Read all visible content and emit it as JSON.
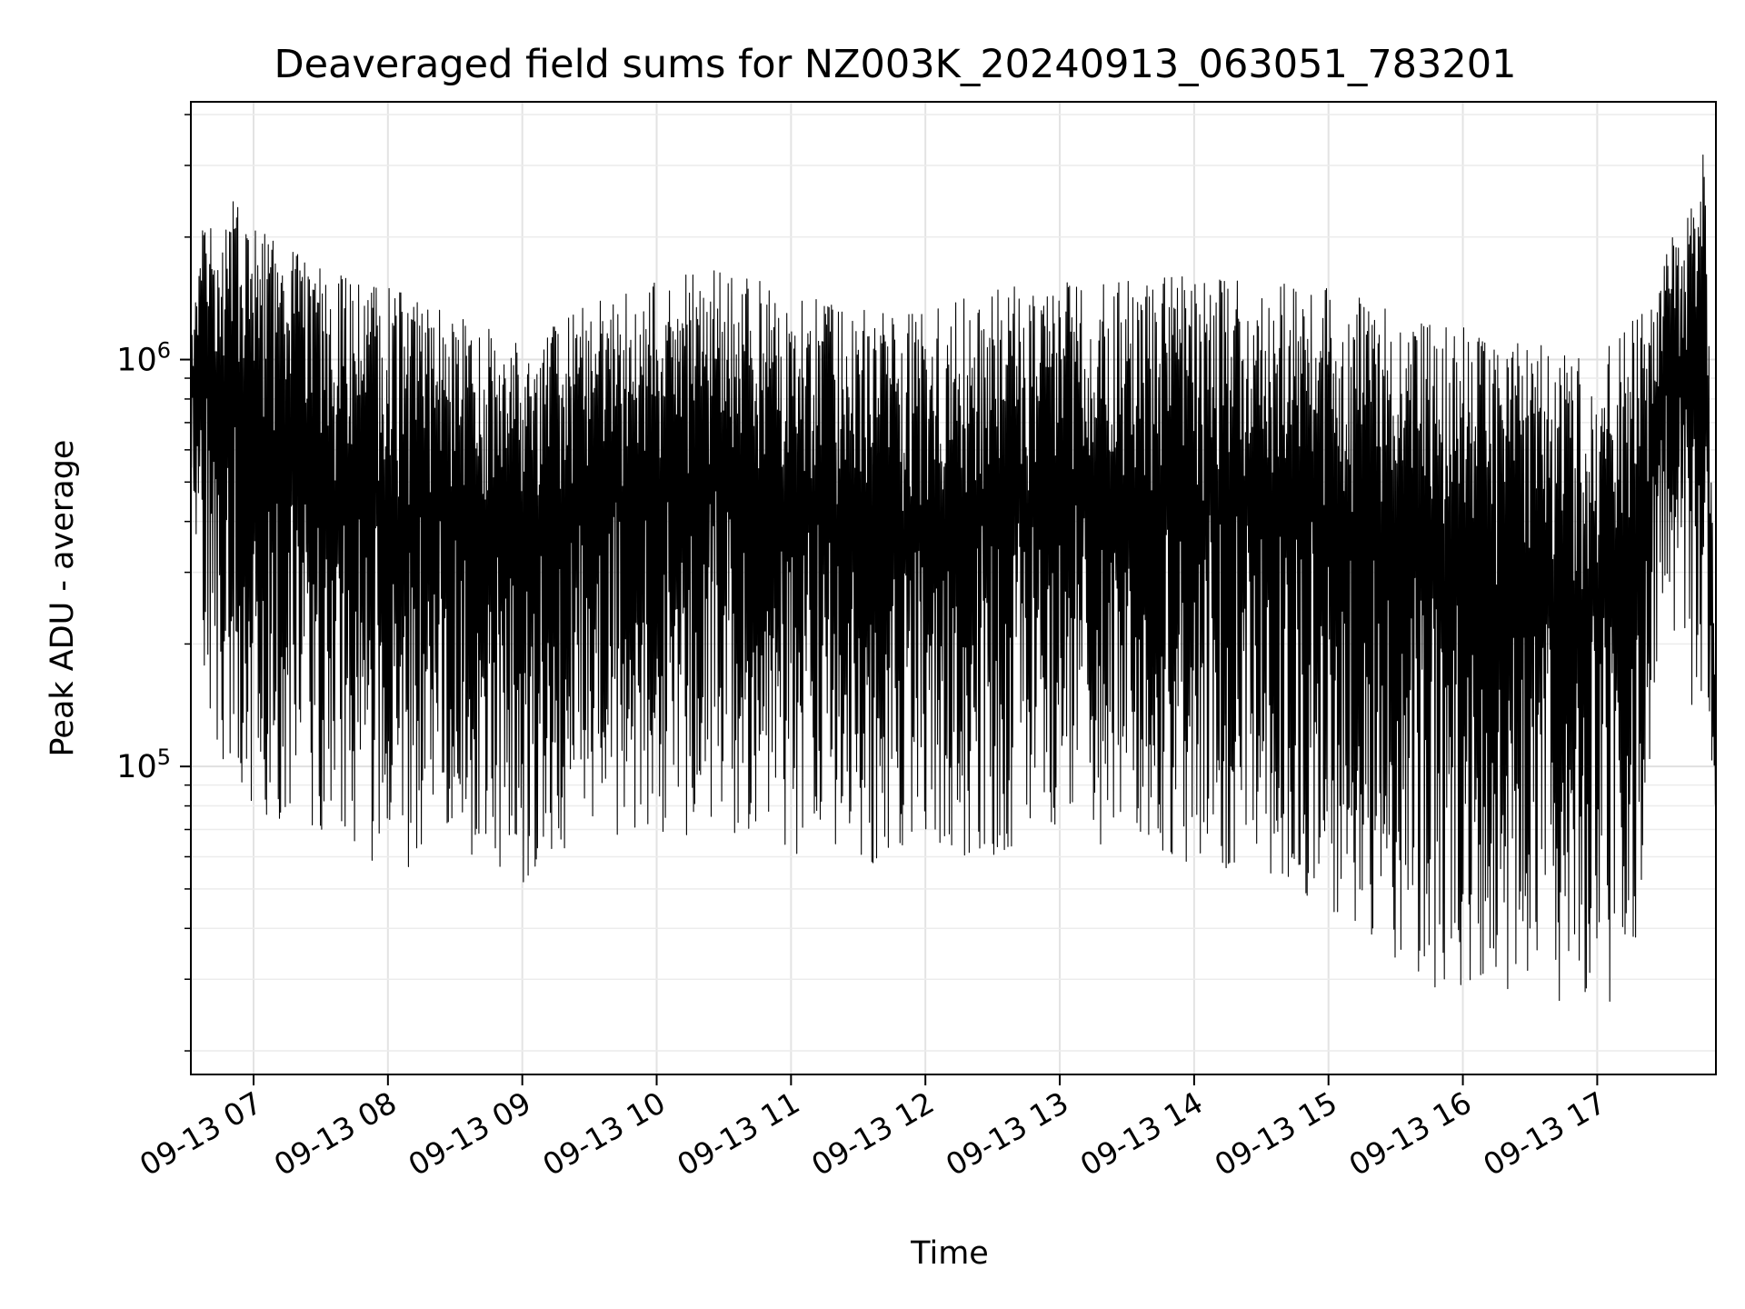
{
  "chart_data": {
    "type": "line",
    "title": "Deaveraged field sums for NZ003K_20240913_063051_783201",
    "xlabel": "Time",
    "ylabel": "Peak ADU - average",
    "y_scale": "log",
    "ylim": [
      17500,
      4300000
    ],
    "xlim": [
      "2024-09-13 06:32",
      "2024-09-13 17:53"
    ],
    "grid": true,
    "grid_minor": true,
    "line_color": "#000000",
    "x_ticks": [
      {
        "time": "2024-09-13 07:00",
        "label": "09-13 07"
      },
      {
        "time": "2024-09-13 08:00",
        "label": "09-13 08"
      },
      {
        "time": "2024-09-13 09:00",
        "label": "09-13 09"
      },
      {
        "time": "2024-09-13 10:00",
        "label": "09-13 10"
      },
      {
        "time": "2024-09-13 11:00",
        "label": "09-13 11"
      },
      {
        "time": "2024-09-13 12:00",
        "label": "09-13 12"
      },
      {
        "time": "2024-09-13 13:00",
        "label": "09-13 13"
      },
      {
        "time": "2024-09-13 14:00",
        "label": "09-13 14"
      },
      {
        "time": "2024-09-13 15:00",
        "label": "09-13 15"
      },
      {
        "time": "2024-09-13 16:00",
        "label": "09-13 16"
      },
      {
        "time": "2024-09-13 17:00",
        "label": "09-13 17"
      }
    ],
    "y_ticks": [
      {
        "value": 100000,
        "mantissa": "10",
        "exponent": "5"
      },
      {
        "value": 1000000,
        "mantissa": "10",
        "exponent": "6"
      }
    ],
    "envelope": {
      "note_series": "dense oscillating series; upper and lower envelope sampled per time",
      "time": [
        "2024-09-13 06:32",
        "2024-09-13 06:40",
        "2024-09-13 07:00",
        "2024-09-13 07:30",
        "2024-09-13 08:00",
        "2024-09-13 08:30",
        "2024-09-13 09:00",
        "2024-09-13 09:30",
        "2024-09-13 10:00",
        "2024-09-13 10:30",
        "2024-09-13 11:00",
        "2024-09-13 11:30",
        "2024-09-13 12:00",
        "2024-09-13 12:30",
        "2024-09-13 13:00",
        "2024-09-13 13:30",
        "2024-09-13 14:00",
        "2024-09-13 14:30",
        "2024-09-13 15:00",
        "2024-09-13 15:30",
        "2024-09-13 16:00",
        "2024-09-13 16:30",
        "2024-09-13 17:00",
        "2024-09-13 17:20",
        "2024-09-13 17:30",
        "2024-09-13 17:40",
        "2024-09-13 17:48",
        "2024-09-13 17:53"
      ],
      "upper": [
        1100000,
        2900000,
        2200000,
        1700000,
        1500000,
        1300000,
        1100000,
        1400000,
        1550000,
        1700000,
        1450000,
        1350000,
        1300000,
        1500000,
        1550000,
        1600000,
        1600000,
        1550000,
        1500000,
        1350000,
        1200000,
        1100000,
        1050000,
        1300000,
        1900000,
        2300000,
        3500000,
        150000
      ],
      "lower": [
        500000,
        120000,
        75000,
        70000,
        55000,
        60000,
        50000,
        70000,
        65000,
        70000,
        60000,
        55000,
        60000,
        60000,
        70000,
        60000,
        55000,
        55000,
        45000,
        32000,
        26000,
        27000,
        22000,
        35000,
        300000,
        130000,
        150000,
        75000
      ]
    }
  }
}
